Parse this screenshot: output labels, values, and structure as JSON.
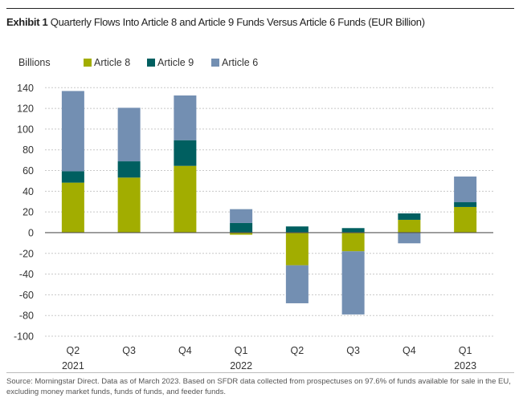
{
  "title_bold": "Exhibit 1",
  "title_rest": "Quarterly Flows Into Article 8 and Article 9 Funds Versus Article 6 Funds (EUR Billion)",
  "source": "Source: Morningstar Direct. Data as of March 2023. Based on SFDR data collected from prospectuses on 97.6% of funds available for sale in the EU, excluding money market funds, funds of funds, and feeder funds.",
  "chart_data": {
    "type": "bar",
    "stacked": true,
    "title": "Quarterly Flows Into Article 8 and Article 9 Funds Versus Article 6 Funds (EUR Billion)",
    "ylabel": "Billions",
    "xlabel": "",
    "ylim": [
      -100,
      140
    ],
    "yticks": [
      140,
      120,
      100,
      80,
      60,
      40,
      20,
      0,
      -20,
      -40,
      -60,
      -80,
      -100
    ],
    "grid": true,
    "legend": "top-left",
    "categories": [
      "Q2 2021",
      "Q3",
      "Q4",
      "Q1 2022",
      "Q2",
      "Q3",
      "Q4",
      "Q1 2023"
    ],
    "tick_labels": [
      [
        "Q2",
        "2021"
      ],
      [
        "Q3",
        ""
      ],
      [
        "Q4",
        ""
      ],
      [
        "Q1",
        "2022"
      ],
      [
        "Q2",
        ""
      ],
      [
        "Q3",
        ""
      ],
      [
        "Q4",
        ""
      ],
      [
        "Q1",
        "2023"
      ]
    ],
    "series": [
      {
        "name": "Article 8",
        "color": "#a2ad00",
        "values": [
          48.3,
          53.2,
          64.5,
          -2.0,
          -31.5,
          -18.0,
          12.4,
          24.8
        ]
      },
      {
        "name": "Article 9",
        "color": "#005f60",
        "values": [
          11.0,
          15.7,
          24.8,
          9.3,
          6.0,
          4.4,
          6.2,
          4.6
        ]
      },
      {
        "name": "Article 6",
        "color": "#738fb2",
        "values": [
          77.5,
          51.7,
          43.2,
          13.4,
          -36.7,
          -61.0,
          -10.3,
          24.8
        ]
      }
    ]
  }
}
